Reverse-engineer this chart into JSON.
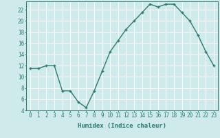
{
  "x": [
    0,
    1,
    2,
    3,
    4,
    5,
    6,
    7,
    8,
    9,
    10,
    11,
    12,
    13,
    14,
    15,
    16,
    17,
    18,
    19,
    20,
    21,
    22,
    23
  ],
  "y": [
    11.5,
    11.5,
    12,
    12,
    7.5,
    7.5,
    5.5,
    4.5,
    7.5,
    11,
    14.5,
    16.5,
    18.5,
    20,
    21.5,
    23,
    22.5,
    23,
    23,
    21.5,
    20,
    17.5,
    14.5,
    12
  ],
  "xlabel": "Humidex (Indice chaleur)",
  "line_color": "#2d7a6e",
  "marker": "+",
  "bg_color": "#ceeaea",
  "grid_color": "#ffffff",
  "ylim": [
    4,
    23
  ],
  "yticks": [
    4,
    6,
    8,
    10,
    12,
    14,
    16,
    18,
    20,
    22
  ],
  "xlim": [
    -0.5,
    23.5
  ],
  "xticks": [
    0,
    1,
    2,
    3,
    4,
    5,
    6,
    7,
    8,
    9,
    10,
    11,
    12,
    13,
    14,
    15,
    16,
    17,
    18,
    19,
    20,
    21,
    22,
    23
  ],
  "xlabel_fontsize": 6.5,
  "tick_fontsize": 5.5,
  "linewidth": 1.0,
  "markersize": 3.5,
  "markeredgewidth": 1.0
}
